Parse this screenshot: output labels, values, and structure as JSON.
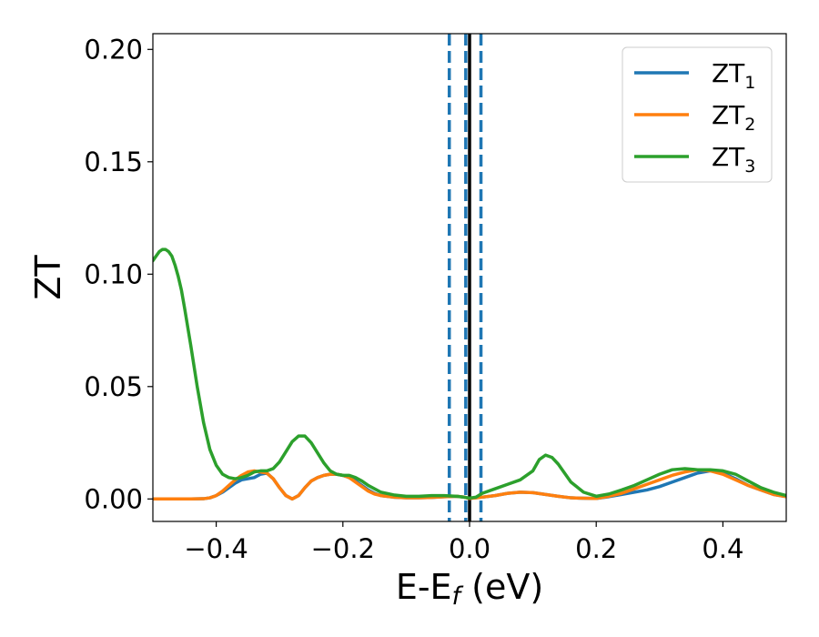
{
  "chart_data": {
    "type": "line",
    "xlabel": "E-E",
    "xlabel_subscript": "f",
    "xlabel_unit": " (eV)",
    "ylabel": "ZT",
    "xlim": [
      -0.5,
      0.5
    ],
    "ylim": [
      -0.01,
      0.207
    ],
    "x_ticks": [
      -0.4,
      -0.2,
      0.0,
      0.2,
      0.4
    ],
    "x_tick_labels": [
      "−0.4",
      "−0.2",
      "0.0",
      "0.2",
      "0.4"
    ],
    "y_ticks": [
      0.0,
      0.05,
      0.1,
      0.15,
      0.2
    ],
    "y_tick_labels": [
      "0.00",
      "0.05",
      "0.10",
      "0.15",
      "0.20"
    ],
    "grid": false,
    "legend_position": "top-right",
    "vertical_lines": [
      {
        "x": -0.032,
        "style": "dashed",
        "color": "#1f77b4"
      },
      {
        "x": -0.006,
        "style": "dashed",
        "color": "#1f77b4"
      },
      {
        "x": 0.018,
        "style": "dashed",
        "color": "#1f77b4"
      },
      {
        "x": 0.0,
        "style": "solid",
        "color": "#000000"
      }
    ],
    "series": [
      {
        "name": "ZT",
        "name_subscript": "1",
        "color": "#1f77b4",
        "x": [
          -0.5,
          -0.48,
          -0.46,
          -0.44,
          -0.42,
          -0.41,
          -0.4,
          -0.39,
          -0.38,
          -0.37,
          -0.36,
          -0.35,
          -0.34,
          -0.33,
          -0.32,
          -0.31,
          -0.3,
          -0.29,
          -0.28,
          -0.27,
          -0.26,
          -0.25,
          -0.24,
          -0.23,
          -0.22,
          -0.21,
          -0.2,
          -0.19,
          -0.18,
          -0.17,
          -0.16,
          -0.15,
          -0.14,
          -0.12,
          -0.1,
          -0.08,
          -0.06,
          -0.04,
          -0.02,
          -0.01,
          0.0,
          0.02,
          0.04,
          0.06,
          0.08,
          0.1,
          0.12,
          0.14,
          0.16,
          0.18,
          0.2,
          0.22,
          0.24,
          0.26,
          0.28,
          0.3,
          0.32,
          0.34,
          0.36,
          0.38,
          0.4,
          0.42,
          0.44,
          0.46,
          0.48,
          0.5
        ],
        "y": [
          0.0,
          0.0,
          0.0,
          0.0,
          0.0001,
          0.0005,
          0.0015,
          0.003,
          0.005,
          0.007,
          0.0085,
          0.009,
          0.0095,
          0.011,
          0.0115,
          0.009,
          0.005,
          0.0015,
          0.0,
          0.0015,
          0.005,
          0.008,
          0.0095,
          0.0105,
          0.011,
          0.011,
          0.0105,
          0.0095,
          0.008,
          0.006,
          0.004,
          0.0025,
          0.0015,
          0.0008,
          0.0005,
          0.0005,
          0.0007,
          0.001,
          0.0012,
          0.0009,
          0.0002,
          0.0008,
          0.0015,
          0.0025,
          0.003,
          0.0028,
          0.002,
          0.0012,
          0.0005,
          0.0003,
          0.0002,
          0.001,
          0.002,
          0.003,
          0.004,
          0.0055,
          0.0075,
          0.0095,
          0.0115,
          0.0125,
          0.0115,
          0.009,
          0.006,
          0.004,
          0.002,
          0.001
        ]
      },
      {
        "name": "ZT",
        "name_subscript": "2",
        "color": "#ff7f0e",
        "x": [
          -0.5,
          -0.48,
          -0.46,
          -0.44,
          -0.42,
          -0.41,
          -0.4,
          -0.39,
          -0.38,
          -0.37,
          -0.36,
          -0.35,
          -0.34,
          -0.33,
          -0.32,
          -0.31,
          -0.3,
          -0.29,
          -0.28,
          -0.27,
          -0.26,
          -0.25,
          -0.24,
          -0.23,
          -0.22,
          -0.21,
          -0.2,
          -0.19,
          -0.18,
          -0.17,
          -0.16,
          -0.15,
          -0.14,
          -0.12,
          -0.1,
          -0.08,
          -0.06,
          -0.04,
          -0.02,
          -0.01,
          0.0,
          0.02,
          0.04,
          0.06,
          0.08,
          0.1,
          0.12,
          0.14,
          0.16,
          0.18,
          0.2,
          0.22,
          0.24,
          0.26,
          0.28,
          0.3,
          0.32,
          0.34,
          0.36,
          0.38,
          0.4,
          0.42,
          0.44,
          0.46,
          0.48,
          0.5
        ],
        "y": [
          0.0,
          0.0,
          0.0,
          0.0,
          0.0001,
          0.0005,
          0.0015,
          0.0035,
          0.006,
          0.0085,
          0.0105,
          0.012,
          0.0125,
          0.012,
          0.0115,
          0.009,
          0.005,
          0.0015,
          0.0,
          0.0015,
          0.005,
          0.008,
          0.0095,
          0.0105,
          0.011,
          0.011,
          0.0105,
          0.0095,
          0.0075,
          0.0055,
          0.0035,
          0.0022,
          0.0015,
          0.0008,
          0.0005,
          0.0005,
          0.0007,
          0.001,
          0.0012,
          0.0009,
          0.0002,
          0.0008,
          0.0015,
          0.0025,
          0.003,
          0.0028,
          0.002,
          0.0012,
          0.0005,
          0.0003,
          0.0002,
          0.0012,
          0.0025,
          0.0045,
          0.0065,
          0.0085,
          0.0105,
          0.012,
          0.013,
          0.0125,
          0.011,
          0.0085,
          0.006,
          0.004,
          0.002,
          0.001
        ]
      },
      {
        "name": "ZT",
        "name_subscript": "3",
        "color": "#2ca02c",
        "x": [
          -0.5,
          -0.495,
          -0.49,
          -0.485,
          -0.48,
          -0.475,
          -0.47,
          -0.465,
          -0.46,
          -0.455,
          -0.45,
          -0.44,
          -0.43,
          -0.42,
          -0.41,
          -0.4,
          -0.39,
          -0.38,
          -0.37,
          -0.36,
          -0.35,
          -0.34,
          -0.33,
          -0.32,
          -0.31,
          -0.3,
          -0.29,
          -0.28,
          -0.27,
          -0.26,
          -0.25,
          -0.24,
          -0.23,
          -0.22,
          -0.21,
          -0.2,
          -0.19,
          -0.18,
          -0.17,
          -0.16,
          -0.15,
          -0.14,
          -0.12,
          -0.1,
          -0.08,
          -0.06,
          -0.04,
          -0.02,
          -0.01,
          0.0,
          0.01,
          0.02,
          0.04,
          0.06,
          0.08,
          0.1,
          0.11,
          0.12,
          0.13,
          0.14,
          0.16,
          0.18,
          0.2,
          0.22,
          0.24,
          0.26,
          0.28,
          0.3,
          0.32,
          0.34,
          0.36,
          0.38,
          0.4,
          0.42,
          0.44,
          0.46,
          0.48,
          0.5
        ],
        "y": [
          0.106,
          0.108,
          0.11,
          0.111,
          0.111,
          0.11,
          0.108,
          0.104,
          0.099,
          0.093,
          0.085,
          0.068,
          0.05,
          0.034,
          0.022,
          0.015,
          0.011,
          0.0095,
          0.009,
          0.0095,
          0.0105,
          0.012,
          0.0125,
          0.0125,
          0.0135,
          0.0165,
          0.021,
          0.0255,
          0.028,
          0.028,
          0.025,
          0.0205,
          0.016,
          0.0125,
          0.011,
          0.0105,
          0.0105,
          0.0095,
          0.008,
          0.006,
          0.0045,
          0.003,
          0.0018,
          0.0012,
          0.0012,
          0.0015,
          0.0015,
          0.0012,
          0.0008,
          0.0004,
          0.0008,
          0.0025,
          0.0045,
          0.0065,
          0.0085,
          0.0125,
          0.0175,
          0.0195,
          0.0185,
          0.0155,
          0.0075,
          0.003,
          0.0012,
          0.0022,
          0.004,
          0.006,
          0.0085,
          0.011,
          0.013,
          0.0135,
          0.013,
          0.013,
          0.0125,
          0.011,
          0.008,
          0.005,
          0.003,
          0.0015
        ]
      }
    ]
  }
}
